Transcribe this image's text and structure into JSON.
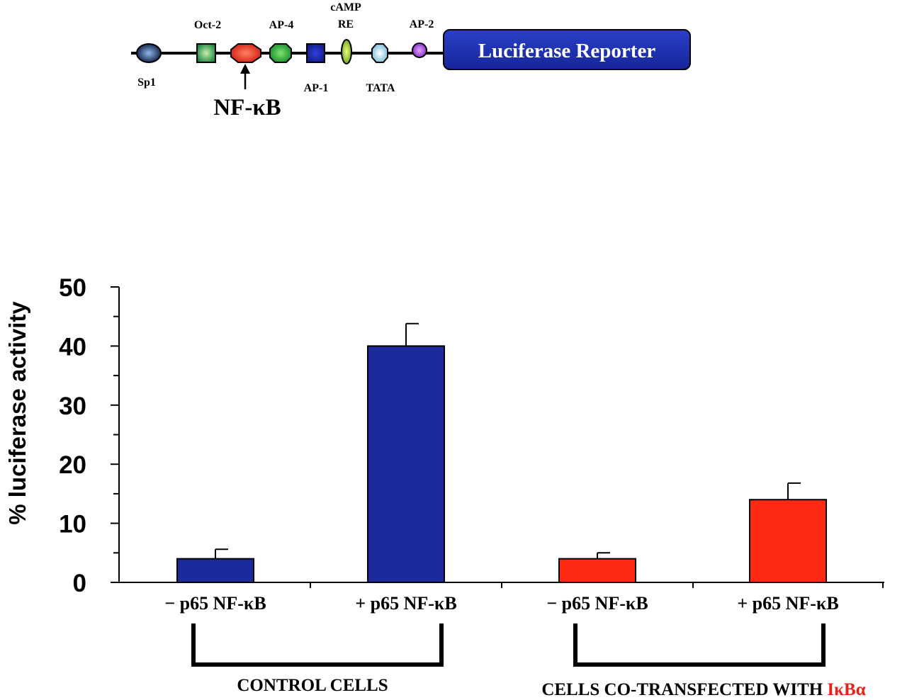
{
  "promoter": {
    "elements_top": [
      {
        "id": "oct2",
        "label": "Oct-2"
      },
      {
        "id": "ap4",
        "label": "AP-4"
      },
      {
        "id": "camp",
        "label": "cAMP",
        "label2": "RE"
      },
      {
        "id": "ap2",
        "label": "AP-2"
      }
    ],
    "elements_bottom": [
      {
        "id": "sp1",
        "label": "Sp1"
      },
      {
        "id": "ap1",
        "label": "AP-1"
      },
      {
        "id": "tata",
        "label": "TATA"
      }
    ],
    "nfkb_label": "NF-κB",
    "reporter_label": "Luciferase Reporter",
    "colors": {
      "sp1": "#0a1a40",
      "oct2": "#1f9a3a",
      "nfkb": "#e8201a",
      "ap4": "#1aa83a",
      "ap1": "#1a2aa8",
      "camp": "#a8d020",
      "tata": "#b8e6f0",
      "ap2": "#9a2fd8",
      "reporter": "#1c2fb0"
    }
  },
  "chart_data": {
    "type": "bar",
    "ylabel": "% luciferase activity",
    "ylim": [
      0,
      50
    ],
    "yticks": [
      "0",
      "10",
      "20",
      "30",
      "40",
      "50"
    ],
    "categories": [
      "− p65 NF-κB",
      "+ p65 NF-κB",
      "− p65 NF-κB",
      "+ p65 NF-κB"
    ],
    "values": [
      4,
      40,
      4,
      14
    ],
    "errors": [
      1.6,
      3.8,
      1.0,
      2.8
    ],
    "bar_colors": [
      "#1c2a9c",
      "#1c2a9c",
      "#ff2a14",
      "#ff2a14"
    ],
    "groups": [
      {
        "label": "CONTROL CELLS",
        "members": [
          0,
          1
        ]
      },
      {
        "label": "CELLS CO-TRANSFECTED WITH ",
        "highlight": "IκBα",
        "highlight_color": "#e8201a",
        "members": [
          2,
          3
        ]
      }
    ]
  }
}
